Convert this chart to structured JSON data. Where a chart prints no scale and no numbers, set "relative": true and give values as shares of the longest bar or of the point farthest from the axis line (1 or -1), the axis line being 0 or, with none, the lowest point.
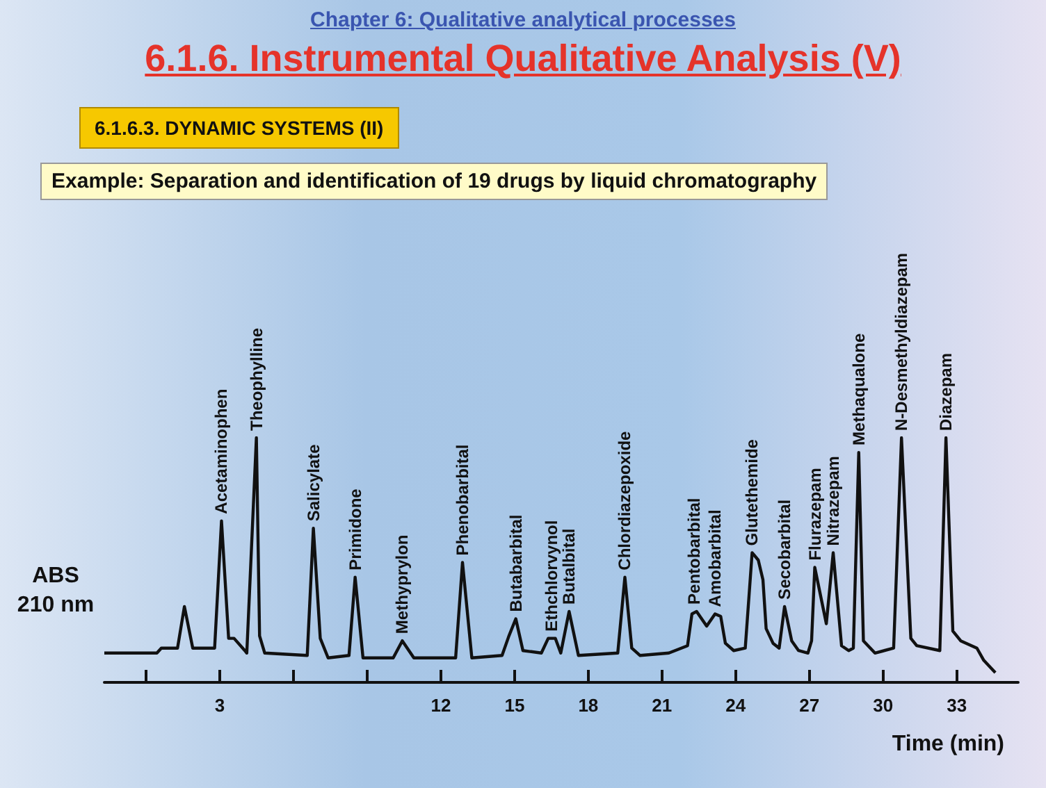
{
  "chart_data": {
    "type": "line",
    "relative": true,
    "title": "6.1.6. Instrumental Qualitative Analysis (V)",
    "annotations": [
      "Chapter 6: Qualitative analytical processes",
      "6.1.6.3. DYNAMIC SYSTEMS (II)",
      "Example: Separation and identification of 19 drugs by liquid chromatography",
      {
        "text": "Acetaminophen",
        "x": 3.07,
        "y": 0.66
      },
      {
        "text": "Theophylline",
        "x": 4.49,
        "y": 1.0
      },
      {
        "text": "Salicylate",
        "x": 6.81,
        "y": 0.63
      },
      {
        "text": "Primidone",
        "x": 8.51,
        "y": 0.43
      },
      {
        "text": "Methyprylon",
        "x": 10.43,
        "y": 0.17
      },
      {
        "text": "Phenobarbital",
        "x": 12.88,
        "y": 0.49
      },
      {
        "text": "Butabarbital",
        "x": 15.05,
        "y": 0.26
      },
      {
        "text": "Ethchlorvynol",
        "x": 16.5,
        "y": 0.18
      },
      {
        "text": "Butalbital",
        "x": 17.22,
        "y": 0.29
      },
      {
        "text": "Chlordiazepoxide",
        "x": 19.49,
        "y": 0.43
      },
      {
        "text": "Pentobarbital",
        "x": 22.3,
        "y": 0.29
      },
      {
        "text": "Amobarbital",
        "x": 23.16,
        "y": 0.28
      },
      {
        "text": "Glutethemide",
        "x": 24.67,
        "y": 0.53
      },
      {
        "text": "Secobarbital",
        "x": 25.99,
        "y": 0.31
      },
      {
        "text": "Flurazepam",
        "x": 27.22,
        "y": 0.47
      },
      {
        "text": "Nitrazepam",
        "x": 27.97,
        "y": 0.53
      },
      {
        "text": "Methaqualone",
        "x": 29.01,
        "y": 0.94
      },
      {
        "text": "N-Desmethyldiazepam",
        "x": 30.75,
        "y": 1.0
      },
      {
        "text": "Diazepam",
        "x": 32.56,
        "y": 1.0
      }
    ],
    "ylabel": "ABS 210 nm",
    "xlabel": "Time (min)",
    "xlim": [
      -1.7,
      35.5
    ],
    "xticks": [
      {
        "value": 0,
        "label": null
      },
      3,
      {
        "value": 6,
        "label": null
      },
      {
        "value": 9,
        "label": null
      },
      12,
      15,
      18,
      21,
      24,
      27,
      30,
      33
    ],
    "grid": false,
    "marker": "none",
    "line_style": "solid",
    "color": "#111111",
    "x": [
      -1.7,
      0.44,
      0.62,
      1.28,
      1.56,
      1.9,
      2.79,
      3.07,
      3.36,
      3.58,
      4.02,
      4.1,
      4.49,
      4.62,
      4.83,
      6.56,
      6.81,
      7.09,
      7.41,
      8.26,
      8.51,
      8.83,
      10.06,
      10.43,
      10.9,
      12.6,
      12.88,
      13.26,
      14.49,
      14.77,
      15.05,
      15.34,
      16.09,
      16.37,
      16.66,
      16.88,
      17.22,
      17.6,
      19.2,
      19.49,
      19.77,
      20.11,
      21.28,
      22.04,
      22.22,
      22.41,
      22.82,
      23.16,
      23.39,
      23.58,
      23.92,
      24.39,
      24.67,
      24.92,
      25.11,
      25.24,
      25.52,
      25.77,
      25.99,
      26.28,
      26.56,
      26.94,
      27.09,
      27.22,
      27.69,
      27.97,
      28.31,
      28.6,
      28.79,
      29.01,
      29.2,
      29.67,
      30.43,
      30.75,
      31.13,
      31.37,
      32.31,
      32.56,
      32.84,
      33.16,
      33.82,
      34.1,
      34.57
    ],
    "values": [
      0.12,
      0.12,
      0.14,
      0.14,
      0.31,
      0.14,
      0.14,
      0.66,
      0.18,
      0.18,
      0.13,
      0.12,
      1.0,
      0.19,
      0.12,
      0.11,
      0.63,
      0.18,
      0.1,
      0.11,
      0.43,
      0.1,
      0.1,
      0.17,
      0.1,
      0.1,
      0.49,
      0.1,
      0.11,
      0.19,
      0.26,
      0.13,
      0.12,
      0.18,
      0.18,
      0.12,
      0.29,
      0.11,
      0.12,
      0.43,
      0.14,
      0.11,
      0.12,
      0.15,
      0.28,
      0.29,
      0.23,
      0.28,
      0.27,
      0.16,
      0.13,
      0.14,
      0.53,
      0.5,
      0.42,
      0.22,
      0.16,
      0.14,
      0.31,
      0.17,
      0.13,
      0.12,
      0.17,
      0.47,
      0.24,
      0.53,
      0.15,
      0.13,
      0.14,
      0.94,
      0.17,
      0.12,
      0.14,
      1.0,
      0.18,
      0.15,
      0.13,
      1.0,
      0.21,
      0.17,
      0.14,
      0.09,
      0.04
    ]
  }
}
